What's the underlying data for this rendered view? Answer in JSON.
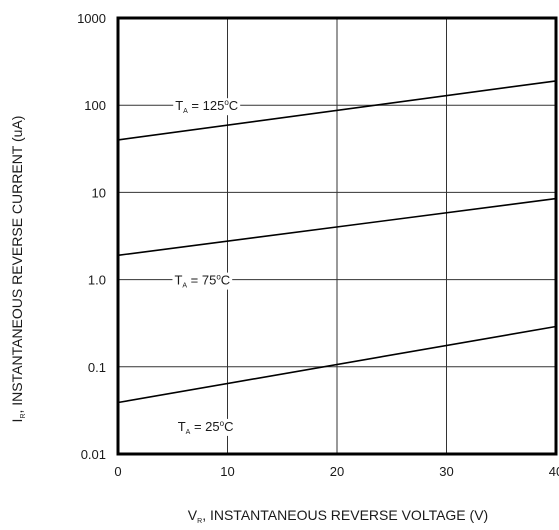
{
  "chart_data": {
    "type": "line",
    "x_axis": {
      "label_main": "V",
      "label_sub": "R",
      "label_rest": ", INSTANTANEOUS REVERSE VOLTAGE (V)",
      "range": [
        0,
        40
      ],
      "ticks": [
        {
          "value": 0,
          "label": "0"
        },
        {
          "value": 10,
          "label": "10"
        },
        {
          "value": 20,
          "label": "20"
        },
        {
          "value": 30,
          "label": "30"
        },
        {
          "value": 40,
          "label": "40"
        }
      ]
    },
    "y_axis": {
      "label_main": "I",
      "label_sub": "R",
      "label_rest": ",  INSTANTANEOUS REVERSE CURRENT (uA)",
      "scale": "log",
      "range": [
        0.01,
        1000
      ],
      "ticks": [
        {
          "value": 0.01,
          "label": "0.01"
        },
        {
          "value": 0.1,
          "label": "0.1"
        },
        {
          "value": 1,
          "label": "1.0"
        },
        {
          "value": 10,
          "label": "10"
        },
        {
          "value": 100,
          "label": "100"
        },
        {
          "value": 1000,
          "label": "1000"
        }
      ]
    },
    "grid": true,
    "series": [
      {
        "label_main": "T",
        "label_sub": "A",
        "label_value": " = 125",
        "label_deg": "o",
        "label_unit": "C",
        "points": [
          [
            0,
            40
          ],
          [
            40,
            190
          ]
        ],
        "label_at": {
          "x": 8.1,
          "y": 100
        }
      },
      {
        "label_main": "T",
        "label_sub": "A",
        "label_value": " = 75",
        "label_deg": "o",
        "label_unit": "C",
        "points": [
          [
            0,
            1.9
          ],
          [
            40,
            8.5
          ]
        ],
        "label_at": {
          "x": 7.7,
          "y": 1.0
        }
      },
      {
        "label_main": "T",
        "label_sub": "A",
        "label_value": " = 25",
        "label_deg": "o",
        "label_unit": "C",
        "points": [
          [
            0,
            0.039
          ],
          [
            40,
            0.29
          ]
        ],
        "label_at": {
          "x": 8.0,
          "y": 0.021
        }
      }
    ]
  }
}
